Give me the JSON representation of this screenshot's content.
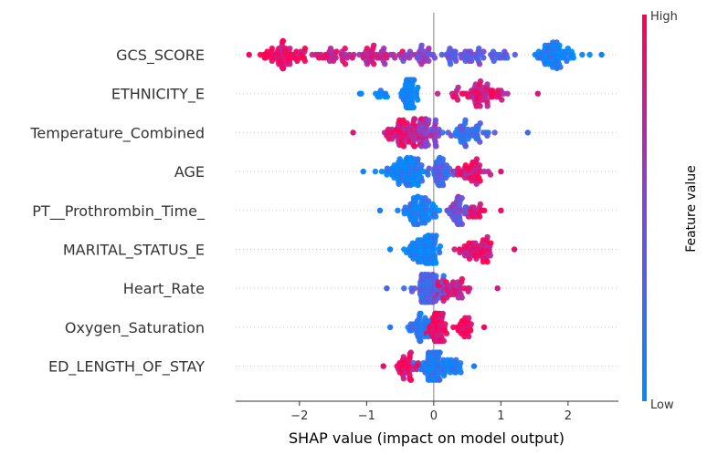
{
  "chart_data": {
    "type": "scatter",
    "subtype": "shap-beeswarm",
    "title": "",
    "xlabel": "SHAP value (impact on model output)",
    "ylabel": "",
    "xlim": [
      -2.95,
      2.75
    ],
    "xticks": [
      -2,
      -1,
      0,
      1,
      2
    ],
    "xtick_labels": [
      "−2",
      "−1",
      "0",
      "1",
      "2"
    ],
    "features": [
      {
        "name": "GCS_SCORE",
        "min": -2.75,
        "max": 2.5,
        "clusters": [
          {
            "c": -2.2,
            "s": 0.35,
            "n": 60,
            "f": 0.92
          },
          {
            "c": -1.5,
            "s": 0.35,
            "n": 30,
            "f": 0.82
          },
          {
            "c": -0.9,
            "s": 0.3,
            "n": 38,
            "f": 0.78
          },
          {
            "c": -0.2,
            "s": 0.3,
            "n": 32,
            "f": 0.55
          },
          {
            "c": 0.45,
            "s": 0.35,
            "n": 38,
            "f": 0.4
          },
          {
            "c": 1.0,
            "s": 0.25,
            "n": 16,
            "f": 0.3
          },
          {
            "c": 1.8,
            "s": 0.25,
            "n": 62,
            "f": 0.08
          }
        ]
      },
      {
        "name": "ETHNICITY_E",
        "min": -1.1,
        "max": 1.55,
        "clusters": [
          {
            "c": -0.35,
            "s": 0.1,
            "n": 70,
            "f": 0.05
          },
          {
            "c": -0.8,
            "s": 0.15,
            "n": 10,
            "f": 0.05
          },
          {
            "c": 0.7,
            "s": 0.35,
            "n": 60,
            "f": 0.85
          }
        ]
      },
      {
        "name": "Temperature_Combined",
        "min": -1.2,
        "max": 1.4,
        "clusters": [
          {
            "c": -0.45,
            "s": 0.25,
            "n": 65,
            "f": 0.85
          },
          {
            "c": -0.1,
            "s": 0.2,
            "n": 45,
            "f": 0.6
          },
          {
            "c": 0.5,
            "s": 0.35,
            "n": 45,
            "f": 0.25
          }
        ]
      },
      {
        "name": "AGE",
        "min": -1.05,
        "max": 1.0,
        "clusters": [
          {
            "c": -0.4,
            "s": 0.3,
            "n": 80,
            "f": 0.08
          },
          {
            "c": 0.1,
            "s": 0.15,
            "n": 40,
            "f": 0.3
          },
          {
            "c": 0.55,
            "s": 0.2,
            "n": 40,
            "f": 0.85
          }
        ]
      },
      {
        "name": "PT__Prothrombin_Time_",
        "min": -0.8,
        "max": 1.0,
        "clusters": [
          {
            "c": -0.25,
            "s": 0.25,
            "n": 70,
            "f": 0.1
          },
          {
            "c": 0.35,
            "s": 0.15,
            "n": 40,
            "f": 0.45
          },
          {
            "c": 0.65,
            "s": 0.15,
            "n": 16,
            "f": 0.92
          }
        ]
      },
      {
        "name": "MARITAL_STATUS_E",
        "min": -0.65,
        "max": 1.2,
        "clusters": [
          {
            "c": -0.15,
            "s": 0.25,
            "n": 80,
            "f": 0.05
          },
          {
            "c": 0.65,
            "s": 0.25,
            "n": 50,
            "f": 0.9
          }
        ]
      },
      {
        "name": "Heart_Rate",
        "min": -0.7,
        "max": 0.95,
        "clusters": [
          {
            "c": -0.1,
            "s": 0.22,
            "n": 70,
            "f": 0.3
          },
          {
            "c": 0.3,
            "s": 0.22,
            "n": 40,
            "f": 0.8
          }
        ]
      },
      {
        "name": "Oxygen_Saturation",
        "min": -0.65,
        "max": 0.75,
        "clusters": [
          {
            "c": -0.2,
            "s": 0.15,
            "n": 40,
            "f": 0.15
          },
          {
            "c": 0.05,
            "s": 0.12,
            "n": 60,
            "f": 0.95
          },
          {
            "c": 0.45,
            "s": 0.12,
            "n": 25,
            "f": 0.95
          }
        ]
      },
      {
        "name": "ED_LENGTH_OF_STAY",
        "min": -0.75,
        "max": 0.6,
        "clusters": [
          {
            "c": -0.4,
            "s": 0.15,
            "n": 35,
            "f": 0.92
          },
          {
            "c": 0.0,
            "s": 0.18,
            "n": 70,
            "f": 0.15
          },
          {
            "c": 0.35,
            "s": 0.12,
            "n": 15,
            "f": 0.05
          }
        ]
      }
    ],
    "colorbar": {
      "title": "Feature value",
      "high_label": "High",
      "low_label": "Low",
      "low_color": "#008bfb",
      "high_color": "#ff0052"
    },
    "grid": false,
    "zero_line": true
  }
}
